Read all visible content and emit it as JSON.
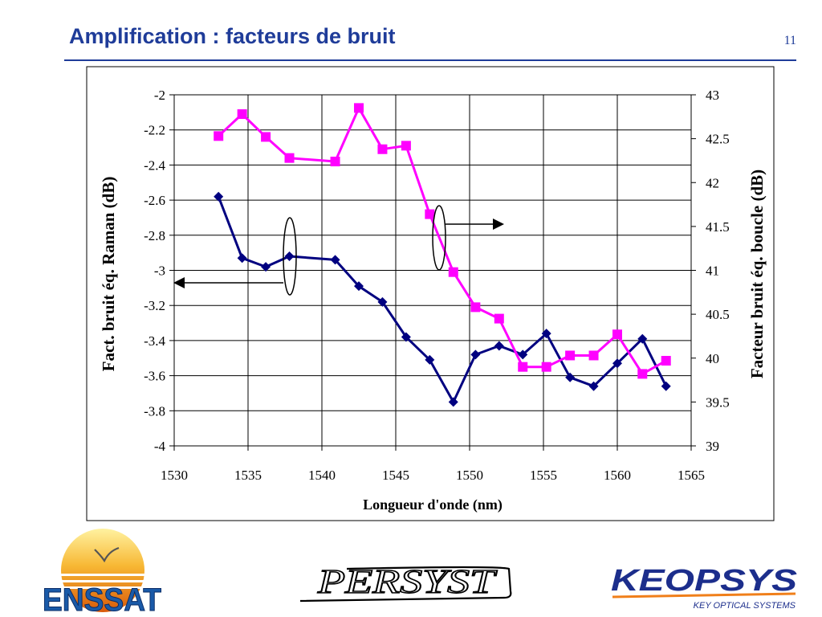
{
  "slide": {
    "title": "Amplification : facteurs de bruit",
    "page_number": "11"
  },
  "logos": {
    "enssat": "ENSSAT",
    "perssys": "PERSYST",
    "keopsys": "KEOPSYS",
    "keopsys_tagline": "KEY OPTICAL SYSTEMS"
  },
  "colors": {
    "title": "#1f3c99",
    "raman_series": "#000080",
    "loop_series": "#ff00ff"
  },
  "chart_data": {
    "type": "line",
    "xlabel": "Longueur d'onde (nm)",
    "ylabel": "Fact. bruit éq. Raman (dB)",
    "y2label": "Facteur bruit éq. boucle (dB)",
    "xlim": [
      1530,
      1565
    ],
    "ylim": [
      -4,
      -2
    ],
    "y2lim": [
      39,
      43
    ],
    "xticks": [
      1530,
      1535,
      1540,
      1545,
      1550,
      1555,
      1560,
      1565
    ],
    "yticks": [
      -2,
      -2.2,
      -2.4,
      -2.6,
      -2.8,
      -3,
      -3.2,
      -3.4,
      -3.6,
      -3.8,
      -4
    ],
    "y2ticks": [
      43,
      42.5,
      42,
      41.5,
      41,
      40.5,
      40,
      39.5,
      39
    ],
    "grid": true,
    "series": [
      {
        "axis": "left",
        "marker": "diamond",
        "color": "#000080",
        "x": [
          1533.0,
          1534.6,
          1536.2,
          1537.8,
          1540.9,
          1542.5,
          1544.1,
          1545.7,
          1547.3,
          1548.9,
          1550.4,
          1552.0,
          1553.6,
          1555.2,
          1556.8,
          1558.4,
          1560.0,
          1561.7,
          1563.3
        ],
        "values": [
          -2.58,
          -2.93,
          -2.98,
          -2.92,
          -2.94,
          -3.09,
          -3.18,
          -3.38,
          -3.51,
          -3.75,
          -3.48,
          -3.43,
          -3.48,
          -3.36,
          -3.61,
          -3.66,
          -3.53,
          -3.39,
          -3.66
        ]
      },
      {
        "axis": "right",
        "marker": "square",
        "color": "#ff00ff",
        "x": [
          1533.0,
          1534.6,
          1536.2,
          1537.8,
          1540.9,
          1542.5,
          1544.1,
          1545.7,
          1547.3,
          1548.9,
          1550.4,
          1552.0,
          1553.6,
          1555.2,
          1556.8,
          1558.4,
          1560.0,
          1561.7,
          1563.3
        ],
        "values": [
          42.53,
          42.78,
          42.52,
          42.28,
          42.24,
          42.85,
          42.38,
          42.42,
          41.64,
          40.98,
          40.58,
          40.45,
          39.9,
          39.9,
          40.03,
          40.03,
          40.27,
          39.82,
          39.97
        ]
      }
    ]
  }
}
